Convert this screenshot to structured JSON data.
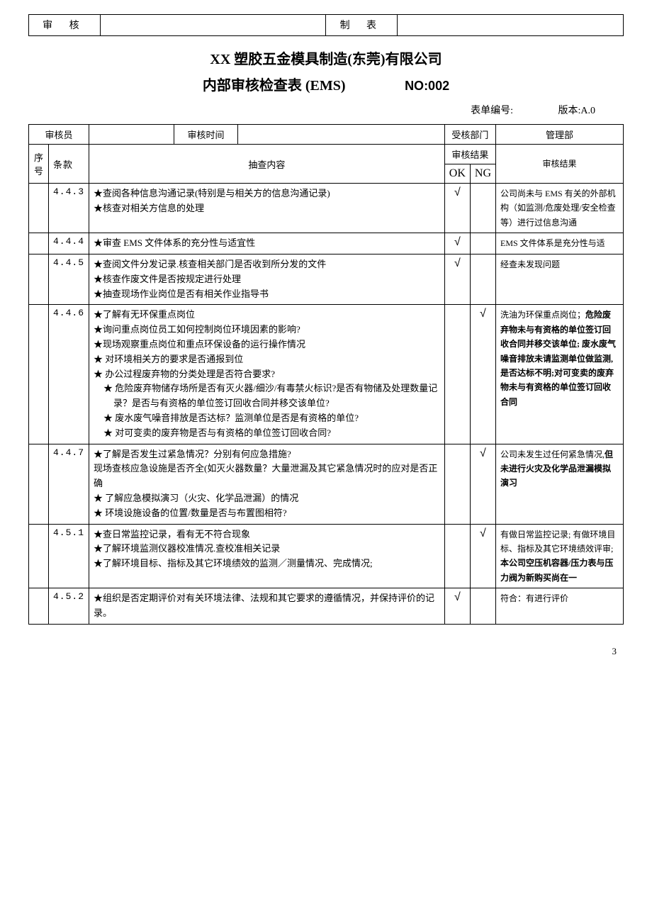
{
  "top": {
    "audit_label": "审 核",
    "audit_value": "",
    "make_label": "制 表",
    "make_value": ""
  },
  "company": "XX 塑胶五金模具制造(东莞)有限公司",
  "doc_title": "内部审核检查表 (EMS)",
  "doc_no": "NO:002",
  "form_no_label": "表单编号:",
  "form_no_value": "",
  "version_label": "版本:A.0",
  "head": {
    "auditor_label": "审核员",
    "auditor_value": "",
    "audit_time_label": "审核时间",
    "audit_time_value": "",
    "dept_label": "受核部门",
    "dept_value": "管理部",
    "seq_label": "序号",
    "clause_label": "条款",
    "content_label": "抽查内容",
    "result_group_label": "审核结果",
    "ok_label": "OK",
    "ng_label": "NG",
    "result_label": "审核结果"
  },
  "rows": [
    {
      "seq": "",
      "clause": "4.4.3",
      "content_lines": [
        "★查阅各种信息沟通记录(特别是与相关方的信息沟通记录)",
        "★核查对相关方信息的处理"
      ],
      "ok": "√",
      "ng": "",
      "result_plain": "公司尚未与 EMS 有关的外部机构（如监测/危废处理/安全检查等）进行过信息沟通",
      "result_bold": ""
    },
    {
      "seq": "",
      "clause": "4.4.4",
      "content_lines": [
        "★审查 EMS 文件体系的充分性与适宜性"
      ],
      "ok": "√",
      "ng": "",
      "result_plain": "EMS 文件体系是充分性与适",
      "result_bold": "",
      "clip": true
    },
    {
      "seq": "",
      "clause": "4.4.5",
      "content_lines": [
        "★查阅文件分发记录.核查相关部门是否收到所分发的文件",
        "★核查作废文件是否按规定进行处理",
        "★抽查现场作业岗位是否有相关作业指导书"
      ],
      "ok": "√",
      "ng": "",
      "result_plain": "经查未发现问题",
      "result_bold": ""
    },
    {
      "seq": "",
      "clause": "4.4.6",
      "content_lines": [
        "★了解有无环保重点岗位",
        "★询问重点岗位员工如何控制岗位环境因素的影响?",
        "★现场观察重点岗位和重点环保设备的运行操作情况",
        "★ 对环境相关方的要求是否通报到位",
        "★ 办公过程废弃物的分类处理是否符合要求?"
      ],
      "content_bullets": [
        "★ 危险废弃物储存场所是否有灭火器/细沙/有毒禁火标识?是否有物储及处理数量记录？是否与有资格的单位签订回收合同并移交该单位?",
        "★ 废水废气噪音排放是否达标？监测单位是否是有资格的单位?",
        "★ 对可变卖的废弃物是否与有资格的单位签订回收合同?"
      ],
      "ok": "",
      "ng": "√",
      "result_plain": "洗油为环保重点岗位；",
      "result_bold": "危险废弃物未与有资格的单位签订回收合同并移交该单位; 废水废气噪音排放未请监测单位做监测,是否达标不明;对可变卖的废弃物未与有资格的单位签订回收合同"
    },
    {
      "seq": "",
      "clause": "4.4.7",
      "content_lines": [
        "★了解是否发生过紧急情况？分别有何应急措施?",
        "现场查核应急设施是否齐全(如灭火器数量？大量泄漏及其它紧急情况时的应对是否正确",
        "★ 了解应急模拟演习（火灾、化学品泄漏）的情况",
        "★ 环境设施设备的位置/数量是否与布置图相符?"
      ],
      "ok": "",
      "ng": "√",
      "result_plain": "公司未发生过任何紧急情况,",
      "result_bold": "但未进行火灾及化学品泄漏模拟演习"
    },
    {
      "seq": "",
      "clause": "4.5.1",
      "content_lines": [
        "★查日常监控记录，看有无不符合现象",
        "★了解环境监测仪器校准情况.查校准相关记录",
        "★了解环境目标、指标及其它环境绩效的监测／测量情况、完成情况;"
      ],
      "ok": "",
      "ng": "√",
      "result_plain": "有做日常监控记录; 有做环境目标、指标及其它环境绩效评审;",
      "result_bold": "本公司空压机容器/压力表与压力阀为新购买尚在一"
    },
    {
      "seq": "",
      "clause": "4.5.2",
      "content_lines": [
        "★组织是否定期评价对有关环境法律、法规和其它要求的遵循情况，并保持评价的记录。"
      ],
      "ok": "√",
      "ng": "",
      "result_plain": "符合：有进行评价",
      "result_bold": ""
    }
  ],
  "page_number": "3"
}
